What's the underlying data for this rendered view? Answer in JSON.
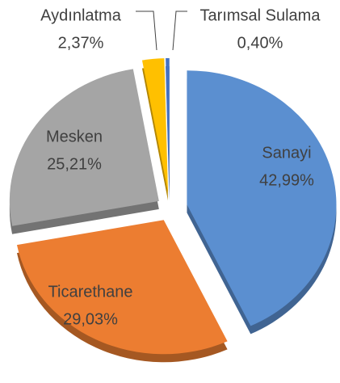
{
  "chart_data": {
    "type": "pie",
    "categories": [
      "Sanayi",
      "Ticarethane",
      "Mesken",
      "Aydınlatma",
      "Tarımsal Sulama"
    ],
    "values": [
      42.99,
      29.03,
      25.21,
      2.37,
      0.4
    ],
    "value_labels": [
      "42,99%",
      "29,03%",
      "25,21%",
      "2,37%",
      "0,40%"
    ],
    "colors": [
      "#5b8fd0",
      "#ec7d31",
      "#a5a5a5",
      "#ffc000",
      "#4472c4"
    ]
  }
}
